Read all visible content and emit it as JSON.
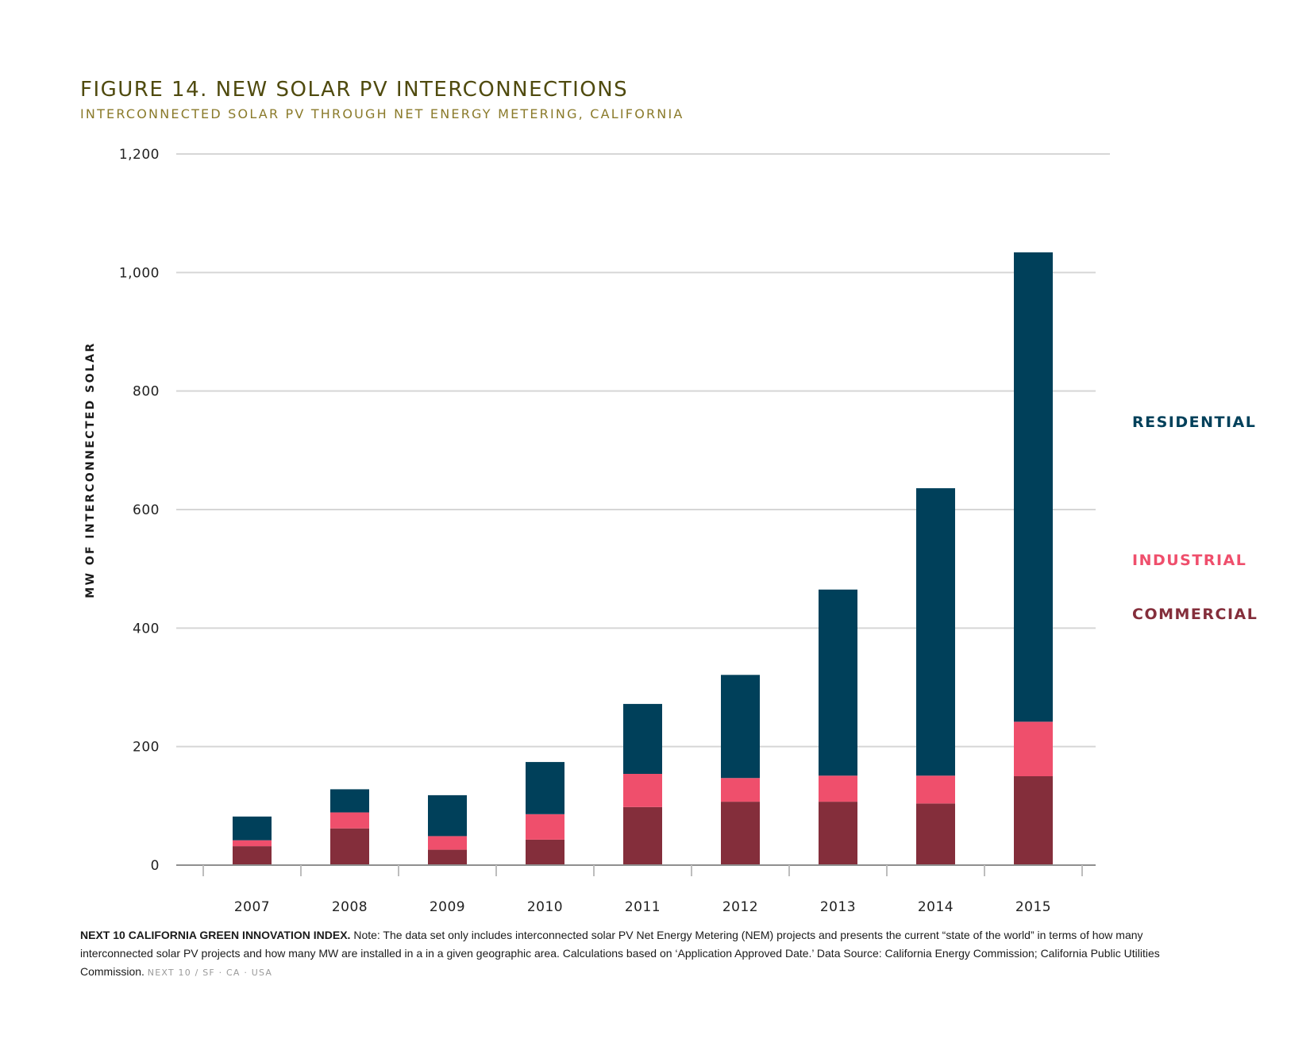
{
  "figure": {
    "title": "FIGURE 14. NEW SOLAR PV INTERCONNECTIONS",
    "subtitle": "INTERCONNECTED SOLAR PV THROUGH NET ENERGY METERING, CALIFORNIA"
  },
  "chart_data": {
    "type": "bar",
    "stacked": true,
    "categories": [
      "2007",
      "2008",
      "2009",
      "2010",
      "2011",
      "2012",
      "2013",
      "2014",
      "2015"
    ],
    "series": [
      {
        "name": "COMMERCIAL",
        "color": "#842e3b",
        "values": [
          32,
          62,
          26,
          43,
          98,
          107,
          107,
          104,
          150
        ]
      },
      {
        "name": "INDUSTRIAL",
        "color": "#ef4f6c",
        "values": [
          10,
          27,
          23,
          43,
          56,
          40,
          44,
          47,
          92
        ]
      },
      {
        "name": "RESIDENTIAL",
        "color": "#00405a",
        "values": [
          40,
          39,
          69,
          88,
          118,
          174,
          314,
          485,
          792
        ]
      }
    ],
    "ylabel": "MW OF INTERCONNECTED SOLAR",
    "xlabel": "",
    "ylim": [
      0,
      1200
    ],
    "yticks": [
      0,
      200,
      400,
      600,
      800,
      1000,
      1200
    ],
    "ytick_labels": [
      "0",
      "200",
      "400",
      "600",
      "800",
      "1,000",
      "1,200"
    ],
    "grid": true,
    "legend": "right",
    "legend_order": [
      "RESIDENTIAL",
      "INDUSTRIAL",
      "COMMERCIAL"
    ]
  },
  "footnote": {
    "lead": "NEXT 10 CALIFORNIA GREEN INNOVATION INDEX.",
    "text": " Note: The data set only includes interconnected solar PV Net Energy Metering (NEM) projects and presents the current “state of the world” in terms of how many interconnected solar PV projects and how many MW are installed in a in a given geographic area. Calculations based on ‘Application Approved Date.’ Data Source: California Energy Commission; California Public Utilities Commission. ",
    "brand": "NEXT 10  /  SF · CA · USA"
  }
}
